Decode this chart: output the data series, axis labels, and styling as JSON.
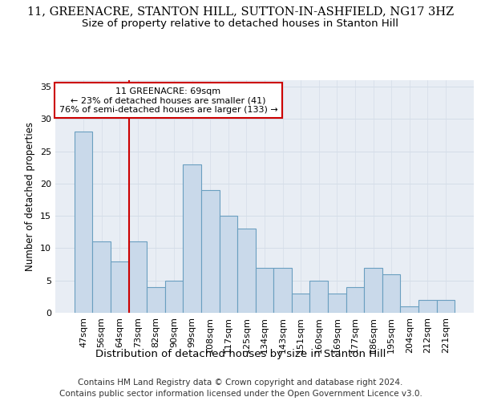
{
  "title_line1": "11, GREENACRE, STANTON HILL, SUTTON-IN-ASHFIELD, NG17 3HZ",
  "title_line2": "Size of property relative to detached houses in Stanton Hill",
  "xlabel": "Distribution of detached houses by size in Stanton Hill",
  "ylabel": "Number of detached properties",
  "categories": [
    "47sqm",
    "56sqm",
    "64sqm",
    "73sqm",
    "82sqm",
    "90sqm",
    "99sqm",
    "108sqm",
    "117sqm",
    "125sqm",
    "134sqm",
    "143sqm",
    "151sqm",
    "160sqm",
    "169sqm",
    "177sqm",
    "186sqm",
    "195sqm",
    "204sqm",
    "212sqm",
    "221sqm"
  ],
  "values": [
    28,
    11,
    8,
    11,
    4,
    5,
    23,
    19,
    15,
    13,
    7,
    7,
    3,
    5,
    3,
    4,
    7,
    6,
    1,
    2,
    2
  ],
  "bar_color": "#c9d9ea",
  "bar_edge_color": "#6a9fc0",
  "bar_edge_width": 0.8,
  "vline_x": 2.5,
  "vline_color": "#cc0000",
  "annotation_text": "11 GREENACRE: 69sqm\n← 23% of detached houses are smaller (41)\n76% of semi-detached houses are larger (133) →",
  "annotation_box_color": "#ffffff",
  "annotation_box_edge": "#cc0000",
  "ylim": [
    0,
    36
  ],
  "yticks": [
    0,
    5,
    10,
    15,
    20,
    25,
    30,
    35
  ],
  "grid_color": "#d4dde8",
  "bg_color": "#e8edf4",
  "footer_line1": "Contains HM Land Registry data © Crown copyright and database right 2024.",
  "footer_line2": "Contains public sector information licensed under the Open Government Licence v3.0.",
  "title_fontsize": 10.5,
  "subtitle_fontsize": 9.5,
  "xlabel_fontsize": 9.5,
  "ylabel_fontsize": 8.5,
  "tick_fontsize": 8,
  "annotation_fontsize": 8,
  "footer_fontsize": 7.5
}
